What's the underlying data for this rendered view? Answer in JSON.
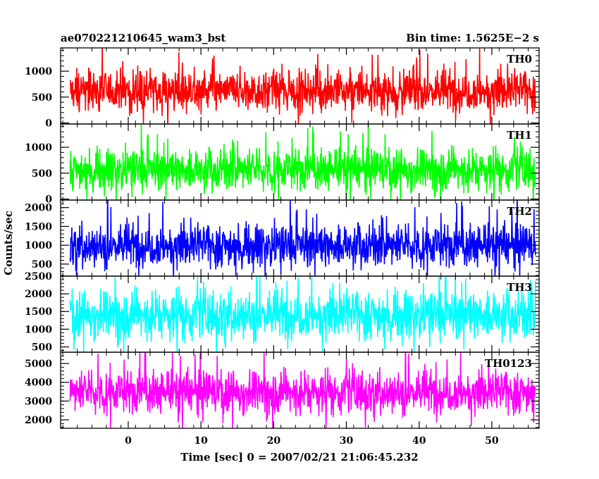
{
  "title_left": "ae070221210645_wam3_bst",
  "title_right": "Bin time: 1.5625E−2 s",
  "xlabel": "Time [sec] 0 = 2007/02/21 21:06:45.232",
  "ylabel": "Counts/sec",
  "chart_data": {
    "type": "line",
    "xlabel": "Time [sec] 0 = 2007/02/21 21:06:45.232",
    "ylabel": "Counts/sec",
    "xlim": [
      -9.3,
      56.5
    ],
    "xticks": [
      0,
      10,
      20,
      30,
      40,
      50
    ],
    "x_data_range": [
      -8.0,
      56.0
    ],
    "bin_time_s": 0.015625,
    "panels": [
      {
        "name": "TH0",
        "color": "#ff0000",
        "ylim": [
          -20,
          1450
        ],
        "yticks": [
          0,
          500,
          1000
        ],
        "typical": [
          200,
          1050
        ]
      },
      {
        "name": "TH1",
        "color": "#00ff00",
        "ylim": [
          -20,
          1450
        ],
        "yticks": [
          0,
          500,
          1000
        ],
        "typical": [
          150,
          1000
        ]
      },
      {
        "name": "TH2",
        "color": "#0000ff",
        "ylim": [
          180,
          2200
        ],
        "yticks": [
          500,
          1000,
          1500,
          2000
        ],
        "typical": [
          400,
          1600
        ]
      },
      {
        "name": "TH3",
        "color": "#00ffff",
        "ylim": [
          350,
          2500
        ],
        "yticks": [
          500,
          1000,
          1500,
          2000,
          2500
        ],
        "typical": [
          700,
          2150
        ]
      },
      {
        "name": "TH0123",
        "color": "#ff00ff",
        "ylim": [
          1550,
          5600
        ],
        "yticks": [
          2000,
          3000,
          4000,
          5000
        ],
        "typical": [
          2300,
          4700
        ]
      }
    ]
  }
}
